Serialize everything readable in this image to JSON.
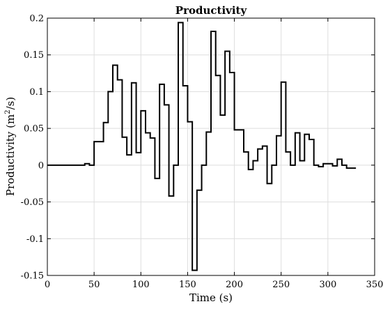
{
  "chart_data": {
    "type": "line",
    "style": "stairs",
    "title": "Productivity",
    "xlabel": "Time (s)",
    "ylabel_text": "Productivity (m",
    "ylabel_sup": "2",
    "ylabel_tail": "/s)",
    "xlim": [
      0,
      350
    ],
    "ylim": [
      -0.15,
      0.2
    ],
    "xticks": [
      0,
      50,
      100,
      150,
      200,
      250,
      300,
      350
    ],
    "xtick_labels": [
      "0",
      "50",
      "100",
      "150",
      "200",
      "250",
      "300",
      "350"
    ],
    "yticks": [
      -0.15,
      -0.1,
      -0.05,
      0,
      0.05,
      0.1,
      0.15,
      0.2
    ],
    "ytick_labels": [
      "-0.15",
      "-0.1",
      "-0.05",
      "0",
      "0.05",
      "0.1",
      "0.15",
      "0.2"
    ],
    "grid": true,
    "line_color": "#000000",
    "series": [
      {
        "x": [
          0,
          40,
          45,
          50,
          60,
          65,
          70,
          75,
          80,
          85,
          90,
          95,
          100,
          105,
          110,
          115,
          120,
          125,
          130,
          135,
          140,
          145,
          150,
          155,
          160,
          165,
          170,
          175,
          180,
          185,
          190,
          195,
          200,
          205,
          210,
          215,
          220,
          225,
          230,
          235,
          240,
          245,
          250,
          255,
          260,
          265,
          270,
          275,
          280,
          285,
          290,
          295,
          300,
          305,
          310,
          315,
          320,
          325,
          330
        ],
        "y": [
          0,
          0.002,
          0,
          0.032,
          0.058,
          0.1,
          0.136,
          0.116,
          0.038,
          0.014,
          0.112,
          0.017,
          0.074,
          0.044,
          0.037,
          -0.018,
          0.11,
          0.082,
          -0.042,
          0.0,
          0.194,
          0.108,
          0.059,
          -0.143,
          -0.034,
          0.0,
          0.045,
          0.182,
          0.122,
          0.068,
          0.155,
          0.126,
          0.048,
          0.048,
          0.018,
          -0.006,
          0.006,
          0.022,
          0.026,
          -0.025,
          0.0,
          0.04,
          0.113,
          0.018,
          0.0,
          0.044,
          0.006,
          0.042,
          0.035,
          0.0,
          -0.002,
          0.002,
          0.002,
          -0.001,
          0.008,
          0.0,
          -0.004,
          -0.004,
          -0.004
        ]
      }
    ]
  }
}
